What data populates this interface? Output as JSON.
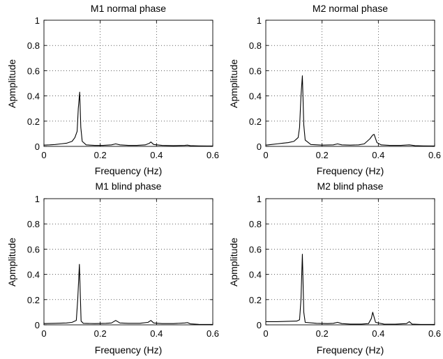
{
  "chart_data": [
    {
      "type": "line",
      "title": "M1 normal phase",
      "xlabel": "Frequency (Hz)",
      "ylabel": "Apmplitude",
      "xlim": [
        0,
        0.6
      ],
      "ylim": [
        0,
        1
      ],
      "xticks": [
        "0",
        "0.2",
        "0.4",
        "0.6"
      ],
      "yticks": [
        "0",
        "0.2",
        "0.4",
        "0.6",
        "0.8",
        "1"
      ],
      "grid": true,
      "series": [
        {
          "x": [
            0,
            0.02,
            0.04,
            0.06,
            0.08,
            0.1,
            0.11,
            0.118,
            0.122,
            0.127,
            0.131,
            0.136,
            0.15,
            0.18,
            0.21,
            0.24,
            0.255,
            0.27,
            0.3,
            0.33,
            0.36,
            0.375,
            0.38,
            0.39,
            0.42,
            0.46,
            0.5,
            0.51,
            0.52,
            0.55,
            0.58,
            0.6
          ],
          "y": [
            0.01,
            0.012,
            0.015,
            0.02,
            0.025,
            0.04,
            0.07,
            0.12,
            0.3,
            0.43,
            0.15,
            0.04,
            0.012,
            0.008,
            0.008,
            0.012,
            0.02,
            0.012,
            0.008,
            0.008,
            0.012,
            0.025,
            0.035,
            0.015,
            0.008,
            0.006,
            0.008,
            0.01,
            0.006,
            0.004,
            0.003,
            0.003
          ]
        }
      ]
    },
    {
      "type": "line",
      "title": "M2 normal phase",
      "xlabel": "Frequency (Hz)",
      "ylabel": "Apmplitude",
      "xlim": [
        0,
        0.6
      ],
      "ylim": [
        0,
        1
      ],
      "xticks": [
        "0",
        "0.2",
        "0.4",
        "0.6"
      ],
      "yticks": [
        "0",
        "0.2",
        "0.4",
        "0.6",
        "0.8",
        "1"
      ],
      "grid": true,
      "series": [
        {
          "x": [
            0,
            0.02,
            0.04,
            0.06,
            0.08,
            0.1,
            0.115,
            0.12,
            0.125,
            0.13,
            0.135,
            0.14,
            0.16,
            0.2,
            0.24,
            0.255,
            0.27,
            0.3,
            0.33,
            0.35,
            0.37,
            0.38,
            0.385,
            0.395,
            0.41,
            0.44,
            0.48,
            0.51,
            0.53,
            0.56,
            0.6
          ],
          "y": [
            0.01,
            0.015,
            0.02,
            0.025,
            0.03,
            0.04,
            0.07,
            0.15,
            0.4,
            0.56,
            0.17,
            0.05,
            0.015,
            0.01,
            0.012,
            0.02,
            0.012,
            0.01,
            0.012,
            0.02,
            0.06,
            0.09,
            0.095,
            0.03,
            0.012,
            0.008,
            0.008,
            0.012,
            0.006,
            0.004,
            0.003
          ]
        }
      ]
    },
    {
      "type": "line",
      "title": "M1 blind phase",
      "xlabel": "Frequency (Hz)",
      "ylabel": "Apmplitude",
      "xlim": [
        0,
        0.6
      ],
      "ylim": [
        0,
        1
      ],
      "xticks": [
        "0",
        "0.2",
        "0.4",
        "0.6"
      ],
      "yticks": [
        "0",
        "0.2",
        "0.4",
        "0.6",
        "0.8",
        "1"
      ],
      "grid": true,
      "series": [
        {
          "x": [
            0,
            0.04,
            0.08,
            0.1,
            0.115,
            0.12,
            0.126,
            0.132,
            0.14,
            0.18,
            0.22,
            0.24,
            0.255,
            0.27,
            0.3,
            0.34,
            0.37,
            0.38,
            0.39,
            0.42,
            0.46,
            0.5,
            0.51,
            0.52,
            0.55,
            0.6
          ],
          "y": [
            0.01,
            0.012,
            0.015,
            0.02,
            0.035,
            0.2,
            0.48,
            0.03,
            0.012,
            0.01,
            0.012,
            0.015,
            0.035,
            0.015,
            0.012,
            0.012,
            0.02,
            0.035,
            0.015,
            0.01,
            0.01,
            0.015,
            0.018,
            0.008,
            0.004,
            0.003
          ]
        }
      ]
    },
    {
      "type": "line",
      "title": "M2 blind phase",
      "xlabel": "Frequency (Hz)",
      "ylabel": "Apmplitude",
      "xlim": [
        0,
        0.6
      ],
      "ylim": [
        0,
        1
      ],
      "xticks": [
        "0",
        "0.2",
        "0.4",
        "0.6"
      ],
      "yticks": [
        "0",
        "0.2",
        "0.4",
        "0.6",
        "0.8",
        "1"
      ],
      "grid": true,
      "series": [
        {
          "x": [
            0,
            0.04,
            0.08,
            0.11,
            0.12,
            0.125,
            0.13,
            0.135,
            0.14,
            0.18,
            0.22,
            0.24,
            0.255,
            0.27,
            0.3,
            0.34,
            0.365,
            0.375,
            0.38,
            0.385,
            0.39,
            0.42,
            0.46,
            0.5,
            0.51,
            0.52,
            0.55,
            0.6
          ],
          "y": [
            0.025,
            0.025,
            0.028,
            0.03,
            0.04,
            0.2,
            0.56,
            0.1,
            0.02,
            0.012,
            0.01,
            0.012,
            0.02,
            0.01,
            0.006,
            0.006,
            0.01,
            0.05,
            0.1,
            0.06,
            0.02,
            0.006,
            0.005,
            0.01,
            0.025,
            0.006,
            0.003,
            0.003
          ]
        }
      ]
    }
  ]
}
